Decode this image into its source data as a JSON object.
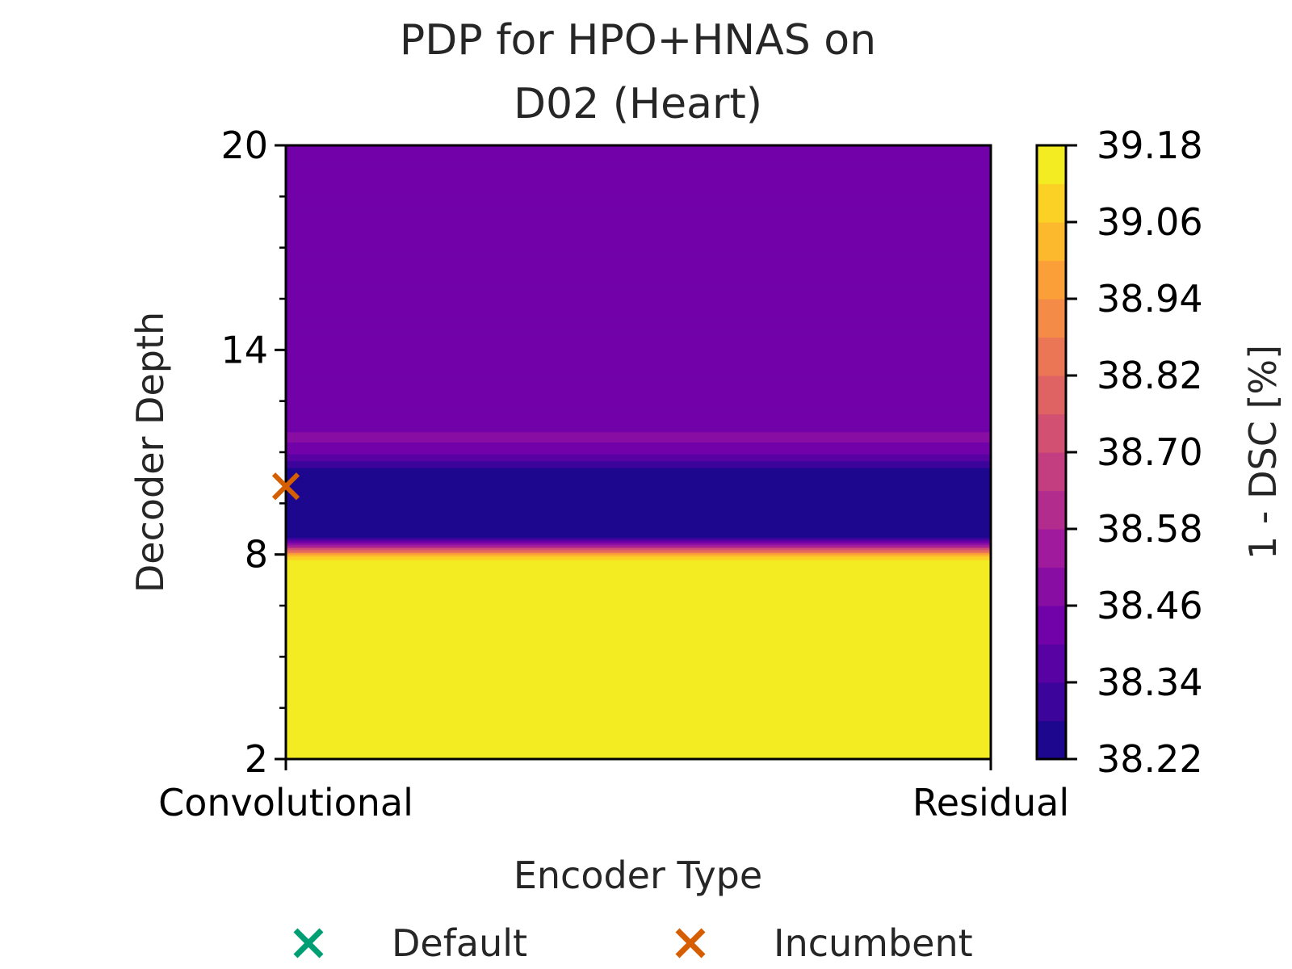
{
  "chart_data": {
    "type": "heatmap",
    "title_lines": [
      "PDP for HPO+HNAS on",
      "D02 (Heart)"
    ],
    "xlabel": "Encoder Type",
    "ylabel": "Decoder Depth",
    "x_categories": [
      "Convolutional",
      "Residual"
    ],
    "ylim": [
      2,
      20
    ],
    "y_ticks": [
      2,
      8,
      14,
      20
    ],
    "y_tick_labels": [
      "2",
      "8",
      "14",
      "20"
    ],
    "colormap": "plasma",
    "colorbar": {
      "label": "1 - DSC [%]",
      "range": [
        38.22,
        39.18
      ],
      "ticks": [
        38.22,
        38.34,
        38.46,
        38.58,
        38.7,
        38.82,
        38.94,
        39.06,
        39.18
      ],
      "tick_labels": [
        "38.22",
        "38.34",
        "38.46",
        "38.58",
        "38.70",
        "38.82",
        "38.94",
        "39.06",
        "39.18"
      ],
      "levels": 16
    },
    "depth_profile": [
      {
        "depth": 2.0,
        "value": 39.17
      },
      {
        "depth": 7.8,
        "value": 39.17
      },
      {
        "depth": 8.0,
        "value": 39.0
      },
      {
        "depth": 8.15,
        "value": 38.75
      },
      {
        "depth": 8.3,
        "value": 38.5
      },
      {
        "depth": 8.5,
        "value": 38.26
      },
      {
        "depth": 8.7,
        "value": 38.24
      },
      {
        "depth": 10.0,
        "value": 38.24
      },
      {
        "depth": 10.4,
        "value": 38.24
      },
      {
        "depth": 10.6,
        "value": 38.3
      },
      {
        "depth": 10.8,
        "value": 38.36
      },
      {
        "depth": 11.1,
        "value": 38.44
      },
      {
        "depth": 11.4,
        "value": 38.47
      },
      {
        "depth": 11.6,
        "value": 38.46
      },
      {
        "depth": 11.9,
        "value": 38.44
      },
      {
        "depth": 20.0,
        "value": 38.44
      }
    ],
    "markers": [
      {
        "name": "Incumbent",
        "x": "Convolutional",
        "y": 10.0,
        "color": "#d55e00"
      }
    ],
    "legend": {
      "position": "bottom",
      "items": [
        {
          "label": "Default",
          "color": "#009e73"
        },
        {
          "label": "Incumbent",
          "color": "#d55e00"
        }
      ]
    }
  }
}
